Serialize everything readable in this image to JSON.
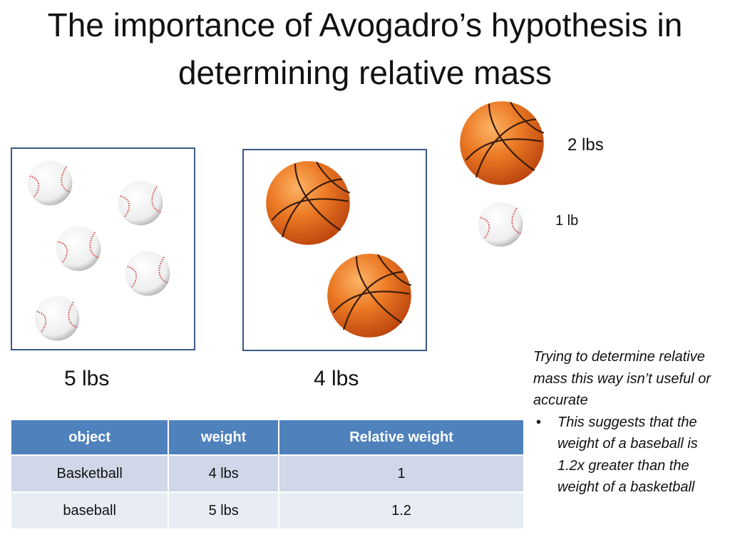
{
  "slide": {
    "title": "The importance of Avogadro’s hypothesis in determining relative mass"
  },
  "legend": {
    "basketball_weight": "2 lbs",
    "baseball_weight": "1 lb"
  },
  "groups": {
    "baseballs_total": "5 lbs",
    "basketballs_total": "4 lbs"
  },
  "table": {
    "headers": [
      "object",
      "weight",
      "Relative weight"
    ],
    "rows": [
      [
        "Basketball",
        "4 lbs",
        "1"
      ],
      [
        "baseball",
        "5 lbs",
        "1.2"
      ]
    ]
  },
  "notes": {
    "intro": "Trying to determine relative mass this way isn’t useful or accurate",
    "bullets": [
      "This suggests that the weight of a baseball is 1.2x greater than the weight of a basketball"
    ]
  },
  "colors": {
    "table_header": "#4f81bd",
    "box_border": "#3b5a86",
    "basketball": "#e8661a",
    "baseball_stitch": "#c8242b"
  }
}
